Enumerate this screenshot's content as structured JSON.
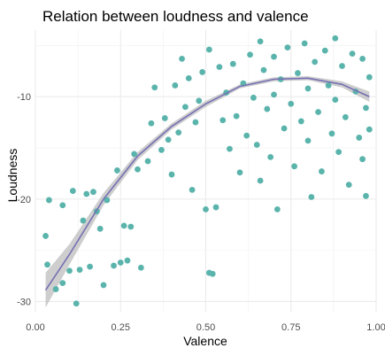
{
  "chart_data": {
    "type": "scatter",
    "title": "Relation between loudness and valence",
    "xlabel": "Valence",
    "ylabel": "Loudness",
    "xlim": [
      0.0,
      1.0
    ],
    "ylim": [
      -31.0,
      -3.5
    ],
    "x_ticks": [
      0.0,
      0.25,
      0.5,
      0.75,
      1.0
    ],
    "x_tick_labels": [
      "0.00",
      "0.25",
      "0.50",
      "0.75",
      "1.00"
    ],
    "y_ticks": [
      -30,
      -20,
      -10
    ],
    "y_tick_labels": [
      "-30",
      "-20",
      "-10"
    ],
    "grid": true,
    "legend": "none",
    "point_color": "#5ab4ac",
    "smooth_color": "#7570b3",
    "band_color": "#bdbdbd",
    "points": [
      [
        0.03,
        -23.6
      ],
      [
        0.035,
        -26.4
      ],
      [
        0.04,
        -20.1
      ],
      [
        0.06,
        -28.8
      ],
      [
        0.08,
        -28.2
      ],
      [
        0.08,
        -20.6
      ],
      [
        0.1,
        -27.0
      ],
      [
        0.11,
        -19.2
      ],
      [
        0.12,
        -30.2
      ],
      [
        0.13,
        -26.9
      ],
      [
        0.14,
        -22.1
      ],
      [
        0.15,
        -19.5
      ],
      [
        0.16,
        -26.6
      ],
      [
        0.17,
        -19.3
      ],
      [
        0.18,
        -21.2
      ],
      [
        0.19,
        -22.9
      ],
      [
        0.2,
        -28.4
      ],
      [
        0.21,
        -20.1
      ],
      [
        0.23,
        -26.5
      ],
      [
        0.24,
        -17.2
      ],
      [
        0.25,
        -26.2
      ],
      [
        0.26,
        -22.6
      ],
      [
        0.27,
        -26.0
      ],
      [
        0.28,
        -22.7
      ],
      [
        0.29,
        -15.6
      ],
      [
        0.3,
        -17.1
      ],
      [
        0.31,
        -26.7
      ],
      [
        0.33,
        -16.3
      ],
      [
        0.34,
        -12.6
      ],
      [
        0.35,
        -9.1
      ],
      [
        0.37,
        -15.2
      ],
      [
        0.38,
        -12.1
      ],
      [
        0.39,
        -14.2
      ],
      [
        0.4,
        -17.6
      ],
      [
        0.41,
        -8.9
      ],
      [
        0.42,
        -13.5
      ],
      [
        0.43,
        -6.3
      ],
      [
        0.44,
        -11.0
      ],
      [
        0.45,
        -8.2
      ],
      [
        0.46,
        -19.1
      ],
      [
        0.47,
        -12.5
      ],
      [
        0.48,
        -10.4
      ],
      [
        0.49,
        -7.6
      ],
      [
        0.5,
        -21.0
      ],
      [
        0.51,
        -5.4
      ],
      [
        0.51,
        -27.2
      ],
      [
        0.52,
        -27.3
      ],
      [
        0.53,
        -20.8
      ],
      [
        0.54,
        -7.1
      ],
      [
        0.55,
        -12.3
      ],
      [
        0.56,
        -9.6
      ],
      [
        0.57,
        -15.1
      ],
      [
        0.58,
        -6.8
      ],
      [
        0.59,
        -11.9
      ],
      [
        0.6,
        -17.4
      ],
      [
        0.61,
        -8.7
      ],
      [
        0.62,
        -13.8
      ],
      [
        0.63,
        -5.9
      ],
      [
        0.64,
        -10.1
      ],
      [
        0.65,
        -14.7
      ],
      [
        0.66,
        -4.6
      ],
      [
        0.66,
        -18.2
      ],
      [
        0.67,
        -7.4
      ],
      [
        0.68,
        -11.2
      ],
      [
        0.69,
        -15.9
      ],
      [
        0.7,
        -6.1
      ],
      [
        0.7,
        -9.8
      ],
      [
        0.71,
        -21.0
      ],
      [
        0.72,
        -8.3
      ],
      [
        0.73,
        -13.1
      ],
      [
        0.74,
        -5.2
      ],
      [
        0.75,
        -10.7
      ],
      [
        0.76,
        -16.8
      ],
      [
        0.77,
        -7.7
      ],
      [
        0.78,
        -12.4
      ],
      [
        0.79,
        -4.8
      ],
      [
        0.8,
        -9.2
      ],
      [
        0.8,
        -14.3
      ],
      [
        0.81,
        -19.8
      ],
      [
        0.82,
        -6.6
      ],
      [
        0.83,
        -11.5
      ],
      [
        0.84,
        -17.3
      ],
      [
        0.85,
        -5.5
      ],
      [
        0.86,
        -8.9
      ],
      [
        0.87,
        -13.6
      ],
      [
        0.88,
        -4.3
      ],
      [
        0.88,
        -10.3
      ],
      [
        0.89,
        -15.4
      ],
      [
        0.9,
        -7.0
      ],
      [
        0.91,
        -12.0
      ],
      [
        0.92,
        -18.6
      ],
      [
        0.93,
        -5.8
      ],
      [
        0.94,
        -9.5
      ],
      [
        0.95,
        -14.0
      ],
      [
        0.96,
        -6.3
      ],
      [
        0.96,
        -16.1
      ],
      [
        0.97,
        -11.1
      ],
      [
        0.97,
        -19.7
      ],
      [
        0.98,
        -8.1
      ],
      [
        0.98,
        -13.2
      ]
    ],
    "smooth_line": [
      [
        0.03,
        -28.9
      ],
      [
        0.1,
        -25.4
      ],
      [
        0.2,
        -20.0
      ],
      [
        0.3,
        -15.8
      ],
      [
        0.4,
        -12.9
      ],
      [
        0.5,
        -10.7
      ],
      [
        0.6,
        -9.0
      ],
      [
        0.7,
        -8.3
      ],
      [
        0.8,
        -8.2
      ],
      [
        0.9,
        -8.8
      ],
      [
        0.98,
        -10.0
      ]
    ],
    "band_lower": [
      [
        0.03,
        -30.6
      ],
      [
        0.1,
        -26.4
      ],
      [
        0.2,
        -20.6
      ],
      [
        0.3,
        -16.2
      ],
      [
        0.4,
        -13.2
      ],
      [
        0.5,
        -11.0
      ],
      [
        0.6,
        -9.2
      ],
      [
        0.7,
        -8.5
      ],
      [
        0.8,
        -8.4
      ],
      [
        0.9,
        -9.1
      ],
      [
        0.98,
        -10.5
      ]
    ],
    "band_upper": [
      [
        0.03,
        -27.2
      ],
      [
        0.1,
        -24.4
      ],
      [
        0.2,
        -19.4
      ],
      [
        0.3,
        -15.4
      ],
      [
        0.4,
        -12.6
      ],
      [
        0.5,
        -10.4
      ],
      [
        0.6,
        -8.8
      ],
      [
        0.7,
        -8.1
      ],
      [
        0.8,
        -8.0
      ],
      [
        0.9,
        -8.5
      ],
      [
        0.98,
        -9.5
      ]
    ]
  }
}
